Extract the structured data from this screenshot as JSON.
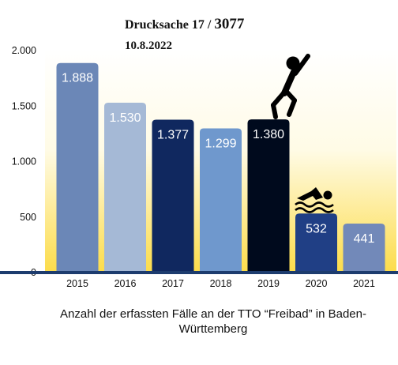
{
  "document": {
    "label": "Drucksache 17 /",
    "number": "3077",
    "date": "10.8.2022"
  },
  "chart_data": {
    "type": "bar",
    "categories": [
      "2015",
      "2016",
      "2017",
      "2018",
      "2019",
      "2020",
      "2021"
    ],
    "values": [
      1888,
      1530,
      1377,
      1299,
      1380,
      532,
      441
    ],
    "value_labels": [
      "1.888",
      "1.530",
      "1.377",
      "1.299",
      "1.380",
      "532",
      "441"
    ],
    "bar_colors": [
      "#6b87b7",
      "#a5b9d6",
      "#10285f",
      "#6f98cd",
      "#000a1d",
      "#203f85",
      "#7289b9"
    ],
    "y_ticks": [
      0,
      500,
      1000,
      1500,
      2000
    ],
    "y_tick_labels": [
      "0",
      "500",
      "1.000",
      "1.500",
      "2.000"
    ],
    "ylim": [
      0,
      2000
    ],
    "grid": false,
    "caption": "Anzahl der erfassten Fälle an der TTO “Freibad” in Baden-Württemberg",
    "icons": [
      "jumping-person-icon",
      "swimmer-icon"
    ]
  }
}
